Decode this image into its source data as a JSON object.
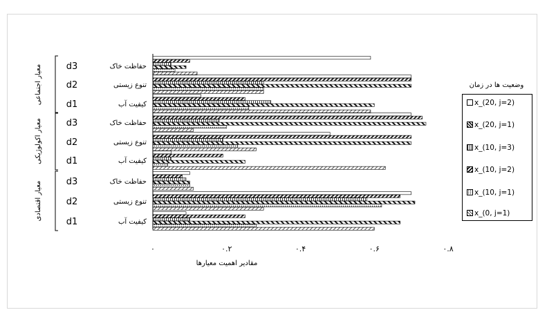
{
  "chart_data": {
    "type": "bar",
    "orientation": "horizontal",
    "xlabel": "مقادیر اهمیت معیارها",
    "xlim": [
      0,
      0.8
    ],
    "xticks": [
      0,
      0.2,
      0.4,
      0.6,
      0.8
    ],
    "xtick_labels": [
      "۰",
      "۰.۲",
      "۰.۴",
      "۰.۶",
      "۰.۸"
    ],
    "legend_title": "وضعیت ها در زمان",
    "legend_position": "right",
    "groups": [
      {
        "label": "معیار اجتماعی",
        "rows": [
          {
            "code": "d3",
            "label": "حفاظت خاک"
          },
          {
            "code": "d2",
            "label": "تنوع زیستی"
          },
          {
            "code": "d1",
            "label": "کیفیت آب"
          }
        ]
      },
      {
        "label": "معیار اکولوژیکی",
        "rows": [
          {
            "code": "d3",
            "label": "حفاظت خاک"
          },
          {
            "code": "d2",
            "label": "تنوع زیستی"
          },
          {
            "code": "d1",
            "label": "کیفیت آب"
          }
        ]
      },
      {
        "label": "معیار اقتصادی",
        "rows": [
          {
            "code": "d3",
            "label": "حفاظت خاک"
          },
          {
            "code": "d2",
            "label": "تنوع زیستی"
          },
          {
            "code": "d1",
            "label": "کیفیت آب"
          }
        ]
      }
    ],
    "series": [
      {
        "name": "x_(20, j=2)",
        "pattern": "plain",
        "values": [
          0.59,
          0.7,
          0.13,
          0.7,
          0.48,
          0.05,
          0.1,
          0.7,
          0.09
        ]
      },
      {
        "name": "x_(20, j=1)",
        "pattern": "diag-dense",
        "values": [
          0.1,
          0.7,
          0.25,
          0.73,
          0.7,
          0.19,
          0.08,
          0.67,
          0.25
        ]
      },
      {
        "name": "x_(10, j=3)",
        "pattern": "vertical",
        "values": [
          0.05,
          0.3,
          0.32,
          0.18,
          0.19,
          0.05,
          0.09,
          0.58,
          0.1
        ]
      },
      {
        "name": "x_(10, j=2)",
        "pattern": "diag",
        "values": [
          0.09,
          0.7,
          0.6,
          0.74,
          0.7,
          0.25,
          0.1,
          0.71,
          0.67
        ]
      },
      {
        "name": "x_(10, j=1)",
        "pattern": "dots",
        "values": [
          0.06,
          0.3,
          0.26,
          0.2,
          0.23,
          0.04,
          0.1,
          0.62,
          0.28
        ]
      },
      {
        "name": "x_(0, j=1)",
        "pattern": "hatch",
        "values": [
          0.12,
          0.3,
          0.59,
          0.11,
          0.28,
          0.63,
          0.11,
          0.3,
          0.6
        ]
      }
    ]
  }
}
